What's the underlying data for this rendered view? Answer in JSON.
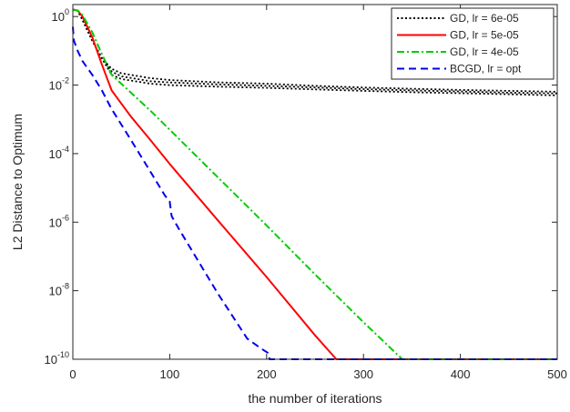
{
  "chart_data": {
    "type": "line",
    "title": "",
    "xlabel": "the number of iterations",
    "ylabel": "L2 Distance to Optimum",
    "xlim": [
      0,
      500
    ],
    "ylim_log10": [
      -10,
      0.35
    ],
    "yscale": "log",
    "grid": false,
    "legend_position": "top-right",
    "xticks": [
      0,
      100,
      200,
      300,
      400,
      500
    ],
    "xtick_labels": [
      "0",
      "100",
      "200",
      "300",
      "400",
      "500"
    ],
    "yticks": [
      {
        "exp": 0,
        "base": "10",
        "sup": "0"
      },
      {
        "exp": -2,
        "base": "10",
        "sup": "-2"
      },
      {
        "exp": -4,
        "base": "10",
        "sup": "-4"
      },
      {
        "exp": -6,
        "base": "10",
        "sup": "-6"
      },
      {
        "exp": -8,
        "base": "10",
        "sup": "-8"
      },
      {
        "exp": -10,
        "base": "10",
        "sup": "-10"
      }
    ],
    "series": [
      {
        "name": "GD, lr = 6e-05",
        "color": "#000000",
        "style": "dotted",
        "variants": [
          {
            "x": [
              0,
              5,
              10,
              20,
              30,
              40,
              50,
              80,
              100,
              150,
              200,
              250,
              300,
              350,
              400,
              450,
              500
            ],
            "y": [
              1.6,
              1.5,
              0.8,
              0.2,
              0.06,
              0.03,
              0.022,
              0.016,
              0.014,
              0.012,
              0.011,
              0.0095,
              0.0085,
              0.0078,
              0.0072,
              0.0068,
              0.0064
            ]
          },
          {
            "x": [
              0,
              5,
              10,
              20,
              30,
              40,
              50,
              80,
              100,
              150,
              200,
              250,
              300,
              350,
              400,
              450,
              500
            ],
            "y": [
              1.6,
              1.5,
              0.8,
              0.2,
              0.06,
              0.025,
              0.018,
              0.013,
              0.012,
              0.0105,
              0.0095,
              0.0085,
              0.0076,
              0.007,
              0.0065,
              0.006,
              0.0057
            ]
          },
          {
            "x": [
              0,
              5,
              10,
              20,
              30,
              40,
              50,
              80,
              100,
              150,
              200,
              250,
              300,
              350,
              400,
              450,
              500
            ],
            "y": [
              1.6,
              1.5,
              0.8,
              0.2,
              0.06,
              0.02,
              0.015,
              0.011,
              0.01,
              0.009,
              0.0083,
              0.0075,
              0.0068,
              0.0062,
              0.0058,
              0.0054,
              0.005
            ]
          }
        ]
      },
      {
        "name": "GD, lr = 5e-05",
        "color": "#ff0000",
        "style": "solid",
        "x": [
          0,
          5,
          10,
          20,
          30,
          40,
          60,
          80,
          100,
          150,
          200,
          250,
          272,
          300,
          400,
          500
        ],
        "y": [
          1.6,
          1.5,
          1.0,
          0.25,
          0.04,
          0.007,
          0.0012,
          0.00025,
          5e-05,
          1.1e-06,
          2.5e-08,
          5e-10,
          1e-10,
          1e-10,
          1e-10,
          1e-10
        ]
      },
      {
        "name": "GD, lr = 4e-05",
        "color": "#00cc00",
        "style": "dashdot",
        "x": [
          0,
          5,
          10,
          20,
          30,
          40,
          60,
          80,
          100,
          150,
          200,
          250,
          300,
          340,
          400,
          500
        ],
        "y": [
          1.6,
          1.5,
          1.1,
          0.35,
          0.08,
          0.02,
          0.006,
          0.0018,
          0.0005,
          2e-05,
          8e-07,
          3e-08,
          1.2e-09,
          1e-10,
          1e-10,
          1e-10
        ]
      },
      {
        "name": "BCGD, lr = opt",
        "color": "#0000ee",
        "style": "dashed",
        "x": [
          0,
          1,
          5,
          10,
          20,
          30,
          40,
          60,
          80,
          95,
          100,
          102,
          110,
          150,
          180,
          195,
          202,
          203,
          250,
          300,
          400,
          500
        ],
        "y": [
          0.5,
          0.2,
          0.1,
          0.05,
          0.02,
          0.007,
          0.002,
          0.00025,
          3e-05,
          6e-06,
          4e-06,
          1.5e-06,
          6e-07,
          8e-09,
          4e-10,
          2e-10,
          1.5e-10,
          1e-10,
          1e-10,
          1e-10,
          1e-10,
          1e-10
        ]
      }
    ]
  }
}
